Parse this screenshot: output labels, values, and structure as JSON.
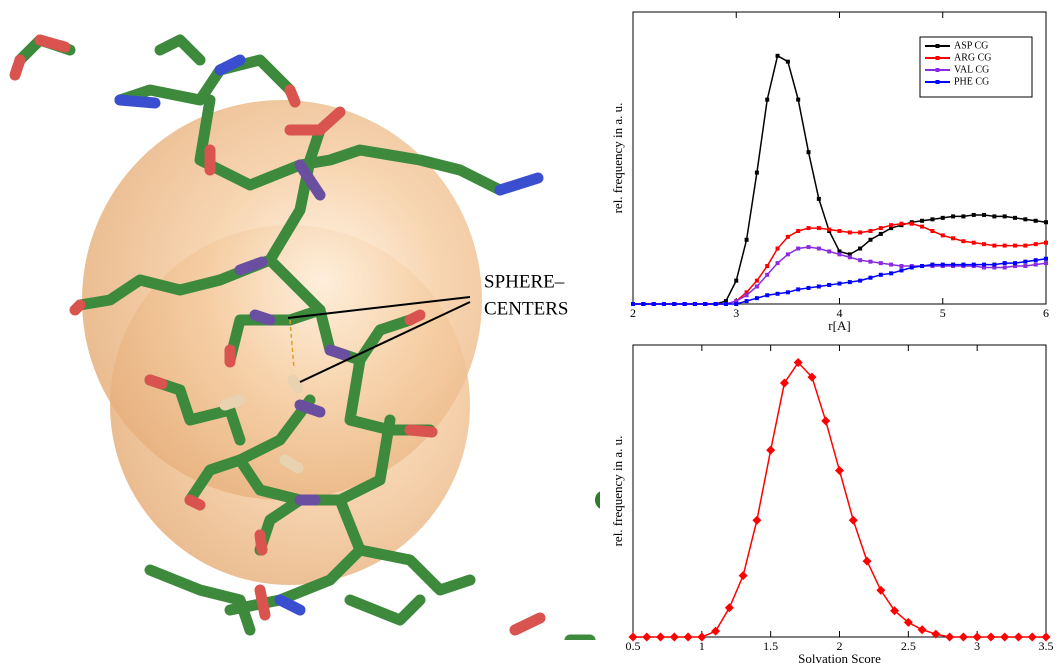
{
  "annotation": [
    "SPHERE–",
    "CENTERS"
  ],
  "chart_data": [
    {
      "type": "line",
      "ylabel": "rel. frequency in a. u.",
      "xlabel": "r[A]",
      "xlim": [
        2,
        6
      ],
      "xticks": [
        2,
        3,
        4,
        5,
        6
      ],
      "ylim": [
        0,
        1
      ],
      "legend": "top-right",
      "marker": "square",
      "x": [
        2,
        2.1,
        2.2,
        2.3,
        2.4,
        2.5,
        2.6,
        2.7,
        2.8,
        2.9,
        3,
        3.1,
        3.2,
        3.3,
        3.4,
        3.5,
        3.6,
        3.7,
        3.8,
        3.9,
        4,
        4.1,
        4.2,
        4.3,
        4.4,
        4.5,
        4.6,
        4.7,
        4.8,
        4.9,
        5,
        5.1,
        5.2,
        5.3,
        5.4,
        5.5,
        5.6,
        5.7,
        5.8,
        5.9,
        6
      ],
      "series": [
        {
          "name": "ASP CG",
          "color": "#000000",
          "values": [
            0,
            0,
            0,
            0,
            0,
            0,
            0,
            0,
            0,
            0.01,
            0.08,
            0.22,
            0.45,
            0.7,
            0.85,
            0.83,
            0.7,
            0.52,
            0.36,
            0.25,
            0.18,
            0.17,
            0.19,
            0.22,
            0.24,
            0.26,
            0.27,
            0.28,
            0.285,
            0.29,
            0.295,
            0.3,
            0.3,
            0.305,
            0.305,
            0.3,
            0.3,
            0.295,
            0.29,
            0.285,
            0.28
          ]
        },
        {
          "name": "ARG CG",
          "color": "#ff0000",
          "values": [
            0,
            0,
            0,
            0,
            0,
            0,
            0,
            0,
            0,
            0,
            0.01,
            0.04,
            0.08,
            0.13,
            0.19,
            0.23,
            0.25,
            0.26,
            0.26,
            0.255,
            0.25,
            0.245,
            0.245,
            0.25,
            0.26,
            0.27,
            0.275,
            0.275,
            0.265,
            0.25,
            0.235,
            0.225,
            0.215,
            0.21,
            0.205,
            0.2,
            0.2,
            0.2,
            0.2,
            0.205,
            0.21
          ]
        },
        {
          "name": "VAL CG",
          "color": "#8a2be2",
          "values": [
            0,
            0,
            0,
            0,
            0,
            0,
            0,
            0,
            0,
            0,
            0.01,
            0.03,
            0.06,
            0.1,
            0.14,
            0.17,
            0.19,
            0.195,
            0.19,
            0.18,
            0.17,
            0.16,
            0.15,
            0.145,
            0.14,
            0.135,
            0.13,
            0.13,
            0.13,
            0.13,
            0.13,
            0.13,
            0.13,
            0.13,
            0.125,
            0.125,
            0.125,
            0.13,
            0.13,
            0.135,
            0.14
          ]
        },
        {
          "name": "PHE CG",
          "color": "#0000ff",
          "values": [
            0,
            0,
            0,
            0,
            0,
            0,
            0,
            0,
            0,
            0,
            0,
            0.01,
            0.02,
            0.03,
            0.035,
            0.04,
            0.05,
            0.055,
            0.06,
            0.065,
            0.07,
            0.075,
            0.08,
            0.09,
            0.1,
            0.105,
            0.115,
            0.125,
            0.13,
            0.135,
            0.135,
            0.135,
            0.135,
            0.135,
            0.135,
            0.135,
            0.14,
            0.14,
            0.145,
            0.15,
            0.155
          ]
        }
      ]
    },
    {
      "type": "line",
      "ylabel": "rel. frequency in a. u.",
      "xlabel": "Solvation Score",
      "xlim": [
        0.5,
        3.5
      ],
      "xticks": [
        0.5,
        1,
        1.5,
        2,
        2.5,
        3,
        3.5
      ],
      "ylim": [
        0,
        1
      ],
      "marker": "diamond",
      "color": "#ff0000",
      "x": [
        0.5,
        0.6,
        0.7,
        0.8,
        0.9,
        1,
        1.1,
        1.2,
        1.3,
        1.4,
        1.5,
        1.6,
        1.7,
        1.8,
        1.9,
        2,
        2.1,
        2.2,
        2.3,
        2.4,
        2.5,
        2.6,
        2.7,
        2.8,
        2.9,
        3,
        3.1,
        3.2,
        3.3,
        3.4,
        3.5
      ],
      "values": [
        0,
        0,
        0,
        0,
        0,
        0,
        0.02,
        0.1,
        0.21,
        0.4,
        0.64,
        0.87,
        0.94,
        0.89,
        0.74,
        0.57,
        0.4,
        0.26,
        0.16,
        0.09,
        0.05,
        0.025,
        0.01,
        0,
        0,
        0,
        0,
        0,
        0,
        0,
        0
      ]
    }
  ]
}
